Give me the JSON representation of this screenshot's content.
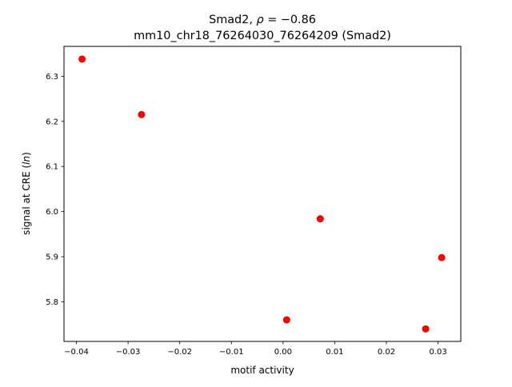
{
  "chart_data": {
    "type": "scatter",
    "title_line1_prefix": "Smad2, ",
    "title_line1_rho": "ρ",
    "title_line1_value": " = −0.86",
    "title_line2": "mm10_chr18_76264030_76264209 (Smad2)",
    "xlabel": "motif activity",
    "ylabel_prefix": "signal at CRE (",
    "ylabel_italic": "ln",
    "ylabel_suffix": ")",
    "xlim": [
      -0.0424,
      0.0344
    ],
    "ylim": [
      5.7122,
      6.3662
    ],
    "x_ticks": [
      -0.04,
      -0.03,
      -0.02,
      -0.01,
      0.0,
      0.01,
      0.02,
      0.03
    ],
    "x_tick_labels": [
      "−0.04",
      "−0.03",
      "−0.02",
      "−0.01",
      "0.00",
      "0.01",
      "0.02",
      "0.03"
    ],
    "y_ticks": [
      5.8,
      5.9,
      6.0,
      6.1,
      6.2,
      6.3
    ],
    "y_tick_labels": [
      "5.8",
      "5.9",
      "6.0",
      "6.1",
      "6.2",
      "6.3"
    ],
    "grid": false,
    "marker_color": "#ff0000",
    "points": [
      {
        "x": -0.0389,
        "y": 6.338
      },
      {
        "x": -0.0274,
        "y": 6.215
      },
      {
        "x": 0.0007,
        "y": 5.76
      },
      {
        "x": 0.0072,
        "y": 5.984
      },
      {
        "x": 0.0276,
        "y": 5.74
      },
      {
        "x": 0.0307,
        "y": 5.898
      }
    ]
  }
}
